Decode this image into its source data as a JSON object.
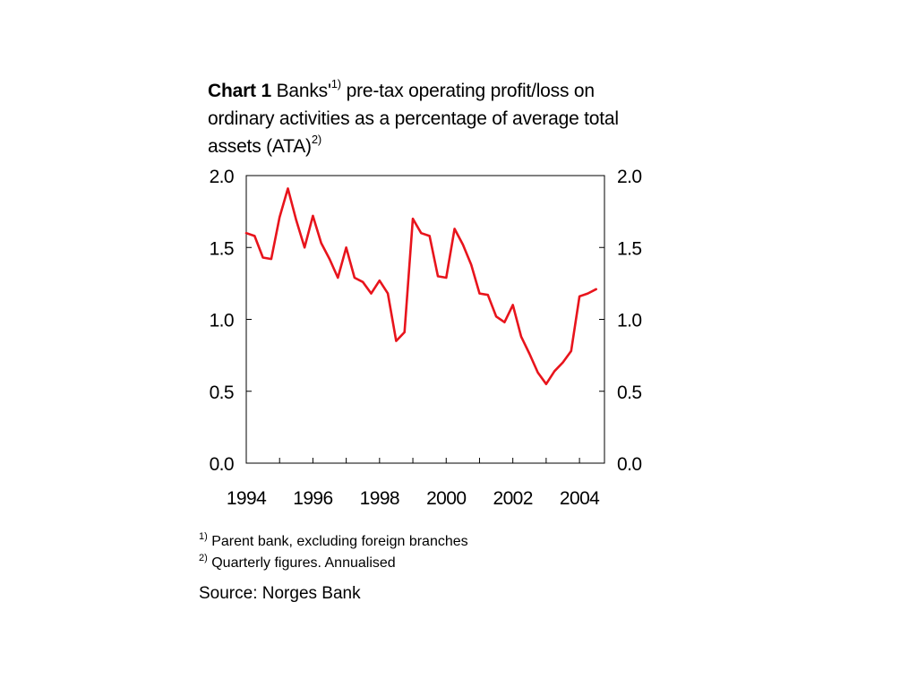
{
  "title": {
    "chart_number": "Chart 1",
    "text_a": "Banks'",
    "sup_a": "1)",
    "text_b": " pre-tax operating profit/loss on ordinary activities as a percentage of average total assets (ATA)",
    "sup_b": "2)"
  },
  "footnotes": [
    {
      "marker": "1)",
      "text": "Parent bank, excluding foreign branches"
    },
    {
      "marker": "2)",
      "text": "Quarterly figures. Annualised"
    }
  ],
  "source": "Source: Norges Bank",
  "colors": {
    "line": "#e8141c",
    "axis": "#000000"
  },
  "chart_data": {
    "type": "line",
    "title": "Chart 1 Banks'1) pre-tax operating profit/loss on ordinary activities as a percentage of average total assets (ATA)2)",
    "xlabel": "",
    "ylabel": "",
    "ylim": [
      0,
      2.0
    ],
    "xlim": [
      1994,
      2004.75
    ],
    "yticks": [
      "0.0",
      "0.5",
      "1.0",
      "1.5",
      "2.0"
    ],
    "xtick_labels": [
      "1994",
      "1996",
      "1998",
      "2000",
      "2002",
      "2004"
    ],
    "grid": false,
    "legend": "none",
    "dual_y_axis": true,
    "series": [
      {
        "x": [
          1994.0,
          1994.25,
          1994.5,
          1994.75,
          1995.0,
          1995.25,
          1995.5,
          1995.75,
          1996.0,
          1996.25,
          1996.5,
          1996.75,
          1997.0,
          1997.25,
          1997.5,
          1997.75,
          1998.0,
          1998.25,
          1998.5,
          1998.75,
          1999.0,
          1999.25,
          1999.5,
          1999.75,
          2000.0,
          2000.25,
          2000.5,
          2000.75,
          2001.0,
          2001.25,
          2001.5,
          2001.75,
          2002.0,
          2002.25,
          2002.5,
          2002.75,
          2003.0,
          2003.25,
          2003.5,
          2003.75,
          2004.0,
          2004.25,
          2004.5
        ],
        "values": [
          1.6,
          1.58,
          1.43,
          1.42,
          1.71,
          1.91,
          1.69,
          1.5,
          1.72,
          1.53,
          1.42,
          1.29,
          1.5,
          1.29,
          1.26,
          1.18,
          1.27,
          1.18,
          0.85,
          0.91,
          1.7,
          1.6,
          1.58,
          1.3,
          1.29,
          1.63,
          1.52,
          1.38,
          1.18,
          1.17,
          1.02,
          0.98,
          1.1,
          0.88,
          0.76,
          0.63,
          0.55,
          0.64,
          0.7,
          0.78,
          1.16,
          1.18,
          1.21
        ]
      }
    ]
  }
}
